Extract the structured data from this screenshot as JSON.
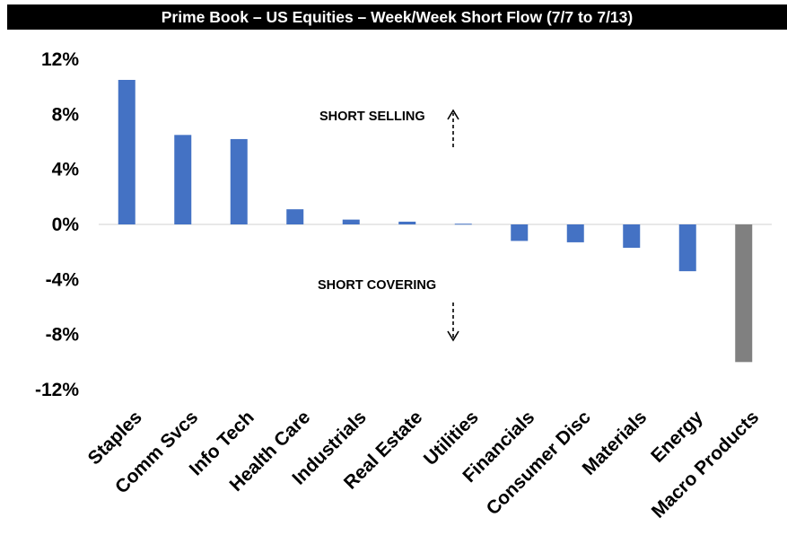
{
  "chart_data": {
    "type": "bar",
    "title": "Prime Book – US Equities – Week/Week Short Flow (7/7 to 7/13)",
    "categories": [
      "Staples",
      "Comm Svcs",
      "Info Tech",
      "Health Care",
      "Industrials",
      "Real Estate",
      "Utilities",
      "Financials",
      "Consumer Disc",
      "Materials",
      "Energy",
      "Macro Products"
    ],
    "values": [
      10.5,
      6.5,
      6.2,
      1.1,
      0.35,
      0.2,
      0.05,
      -1.2,
      -1.3,
      -1.7,
      -3.4,
      -10.0
    ],
    "bar_colors": [
      "#4472C4",
      "#4472C4",
      "#4472C4",
      "#4472C4",
      "#4472C4",
      "#4472C4",
      "#4472C4",
      "#4472C4",
      "#4472C4",
      "#4472C4",
      "#4472C4",
      "#808080"
    ],
    "ylim": [
      -12,
      12
    ],
    "yticks": [
      12,
      8,
      4,
      0,
      -4,
      -8,
      -12
    ],
    "ytick_labels": [
      "12%",
      "8%",
      "4%",
      "0%",
      "-4%",
      "-8%",
      "-12%"
    ],
    "xlabel": "",
    "ylabel": "",
    "grid": false,
    "annotations": [
      "SHORT SELLING",
      "SHORT COVERING"
    ]
  }
}
